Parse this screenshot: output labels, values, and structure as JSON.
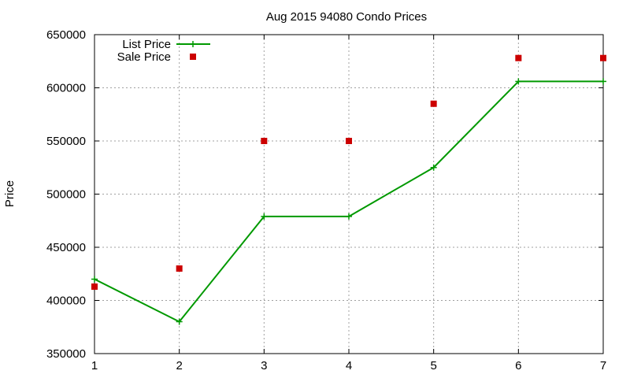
{
  "chart_data": {
    "type": "line",
    "title": "Aug 2015 94080 Condo Prices",
    "xlabel": "",
    "ylabel": "Price",
    "x": [
      1,
      2,
      3,
      4,
      5,
      6,
      7
    ],
    "xlim": [
      1,
      7
    ],
    "ylim": [
      350000,
      650000
    ],
    "x_ticks": [
      "1",
      "2",
      "3",
      "4",
      "5",
      "6",
      "7"
    ],
    "y_ticks": [
      "350000",
      "400000",
      "450000",
      "500000",
      "550000",
      "600000",
      "650000"
    ],
    "y_tick_values": [
      350000,
      400000,
      450000,
      500000,
      550000,
      600000,
      650000
    ],
    "grid": true,
    "legend_position": "top-left",
    "series": [
      {
        "name": "List Price",
        "type": "linespoints",
        "color": "#009900",
        "marker": "plus",
        "values": [
          420000,
          380000,
          479000,
          479000,
          525000,
          606000,
          606000
        ]
      },
      {
        "name": "Sale Price",
        "type": "points",
        "color": "#cc0000",
        "marker": "square",
        "values": [
          413000,
          430000,
          550000,
          550000,
          585000,
          628000,
          628000
        ]
      }
    ]
  }
}
